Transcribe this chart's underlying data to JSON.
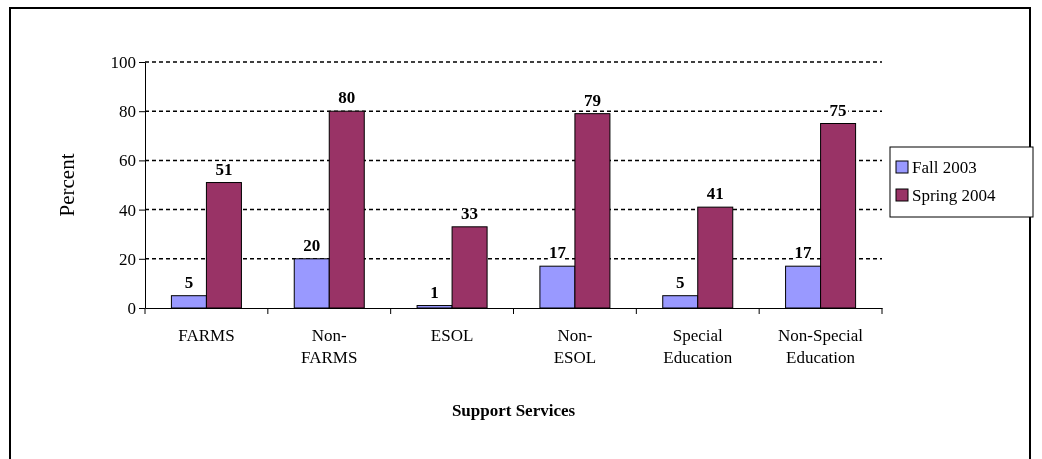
{
  "chart_data": {
    "type": "bar",
    "xlabel": "Support Services",
    "ylabel": "Percent",
    "categories": [
      "FARMS",
      "Non-FARMS",
      "ESOL",
      "Non-ESOL",
      "Special Education",
      "Non-Special Education"
    ],
    "series": [
      {
        "name": "Fall 2003",
        "color": "#9999ff",
        "values": [
          5,
          20,
          1,
          17,
          5,
          17
        ]
      },
      {
        "name": "Spring 2004",
        "color": "#993366",
        "values": [
          51,
          80,
          33,
          79,
          41,
          75
        ]
      }
    ],
    "ylim": [
      0,
      100
    ],
    "yticks": [
      0,
      20,
      40,
      60,
      80,
      100
    ],
    "grid": "y",
    "legend": "right",
    "data_labels": true
  }
}
